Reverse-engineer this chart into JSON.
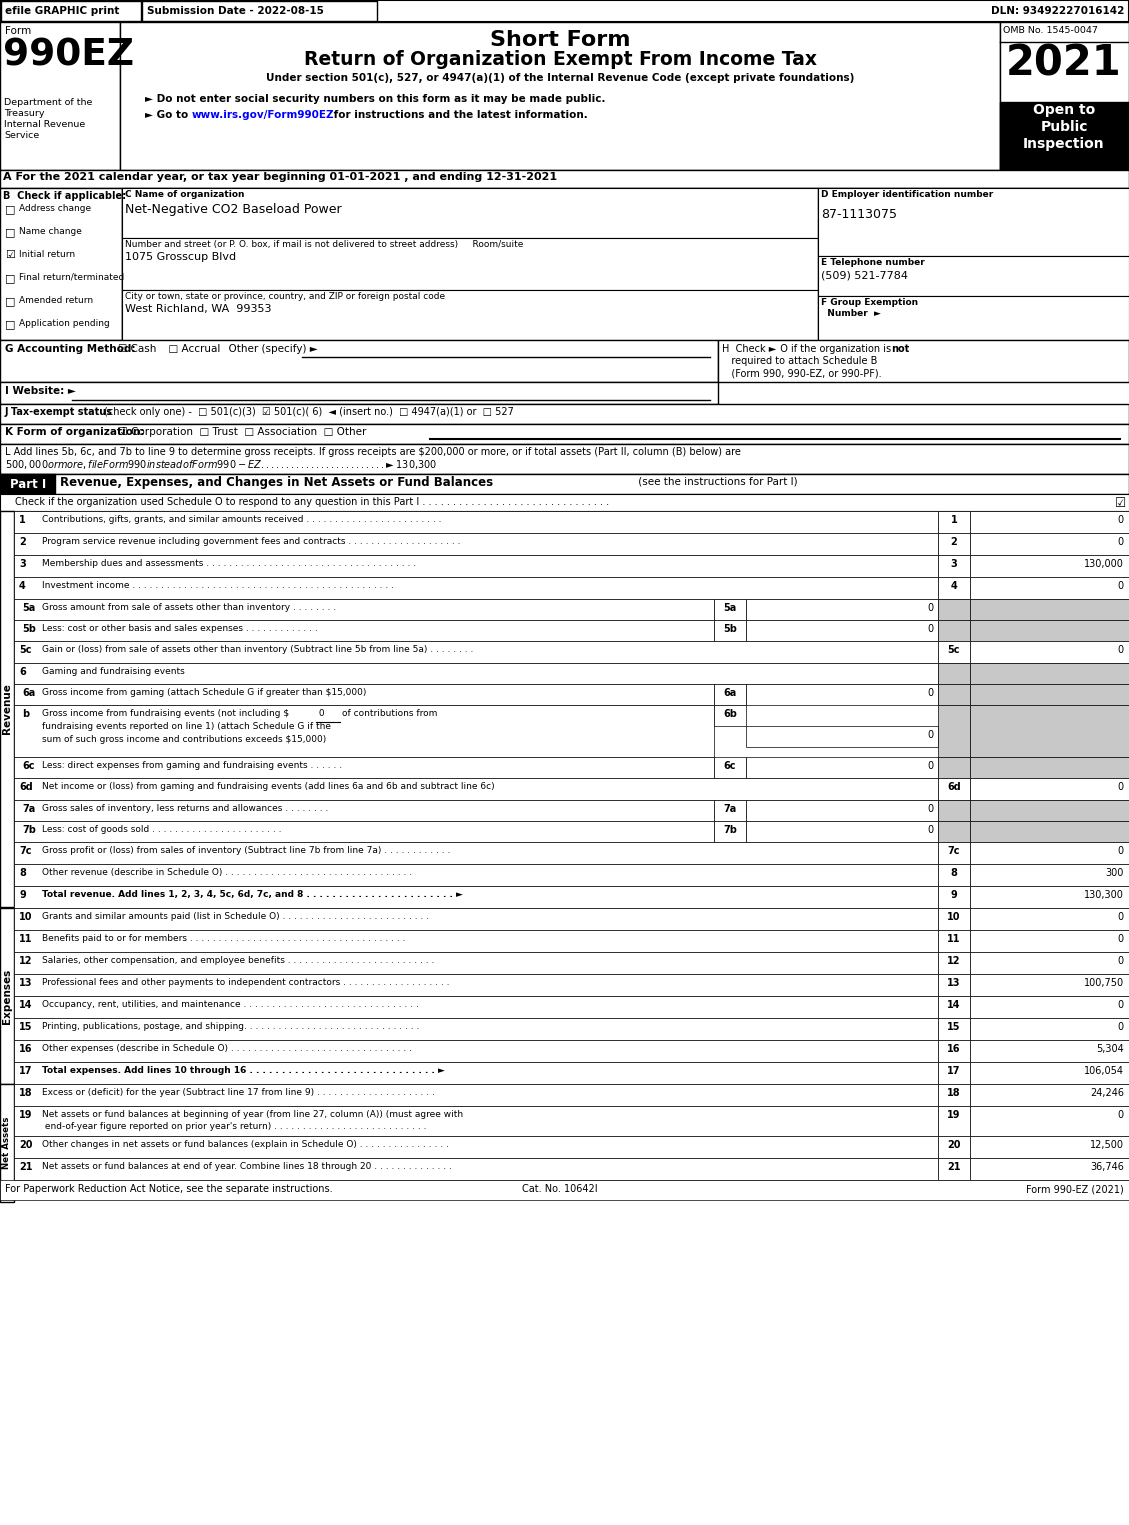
{
  "title_short": "Short Form",
  "title_main": "Return of Organization Exempt From Income Tax",
  "subtitle": "Under section 501(c), 527, or 4947(a)(1) of the Internal Revenue Code (except private foundations)",
  "year": "2021",
  "form_number": "990EZ",
  "omb": "OMB No. 1545-0047",
  "efile_text": "efile GRAPHIC print",
  "submission_date": "Submission Date - 2022-08-15",
  "dln": "DLN: 93492227016142",
  "dept1": "Department of the",
  "dept2": "Treasury",
  "dept3": "Internal Revenue",
  "dept4": "Service",
  "bullet1": "► Do not enter social security numbers on this form as it may be made public.",
  "open_to": "Open to\nPublic\nInspection",
  "section_a": "A For the 2021 calendar year, or tax year beginning 01-01-2021 , and ending 12-31-2021",
  "checks": [
    "Address change",
    "Name change",
    "Initial return",
    "Final return/terminated",
    "Amended return",
    "Application pending"
  ],
  "checked_items": [
    2
  ],
  "org_name": "Net-Negative CO2 Baseload Power",
  "label_street": "Number and street (or P. O. box, if mail is not delivered to street address)     Room/suite",
  "street": "1075 Grosscup Blvd",
  "label_city": "City or town, state or province, country, and ZIP or foreign postal code",
  "city": "West Richland, WA  99353",
  "ein": "87-1113075",
  "phone": "(509) 521-7784",
  "footer_left": "For Paperwork Reduction Act Notice, see the separate instructions.",
  "footer_cat": "Cat. No. 10642I",
  "footer_right": "Form 990-EZ (2021)"
}
